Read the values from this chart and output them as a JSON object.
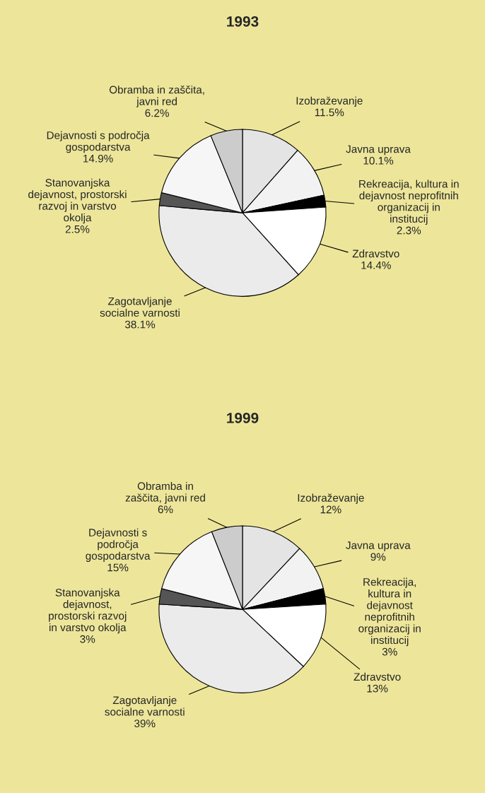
{
  "chart_data": [
    {
      "type": "pie",
      "title": "1993",
      "categories": [
        "Izobraževanje",
        "Javna uprava",
        "Rekreacija, kultura in\ndejavnost neprofitnih\norganizacij in\ninstitucij",
        "Zdravstvo",
        "Zagotavljanje\nsocialne varnosti",
        "Stanovanjska\ndejavnost, prostorski\nrazvoj in varstvo\nokolja",
        "Dejavnosti s področja\ngospodarstva",
        "Obramba in zaščita,\njavni red"
      ],
      "values": [
        11.5,
        10.1,
        2.3,
        14.4,
        38.1,
        2.5,
        14.9,
        6.2
      ],
      "value_labels": [
        "11.5%",
        "10.1%",
        "2.3%",
        "14.4%",
        "38.1%",
        "2.5%",
        "14.9%",
        "6.2%"
      ],
      "colors": [
        "#e4e4e4",
        "#f2f2f2",
        "#000000",
        "#ffffff",
        "#ebebeb",
        "#555555",
        "#f6f6f6",
        "#cccccc"
      ]
    },
    {
      "type": "pie",
      "title": "1999",
      "categories": [
        "Izobraževanje",
        "Javna uprava",
        "Rekreacija,\nkultura in\ndejavnost\nneprofitnih\norganizacij in\ninstitucij",
        "Zdravstvo",
        "Zagotavljanje\nsocialne varnosti",
        "Stanovanjska\ndejavnost,\nprostorski razvoj\nin varstvo okolja",
        "Dejavnosti s\npodročja\ngospodarstva",
        "Obramba in\nzaščita, javni red"
      ],
      "values": [
        12,
        9,
        3,
        13,
        39,
        3,
        15,
        6
      ],
      "value_labels": [
        "12%",
        "9%",
        "3%",
        "13%",
        "39%",
        "3%",
        "15%",
        "6%"
      ],
      "colors": [
        "#e4e4e4",
        "#f2f2f2",
        "#000000",
        "#ffffff",
        "#ebebeb",
        "#555555",
        "#f6f6f6",
        "#cccccc"
      ]
    }
  ]
}
